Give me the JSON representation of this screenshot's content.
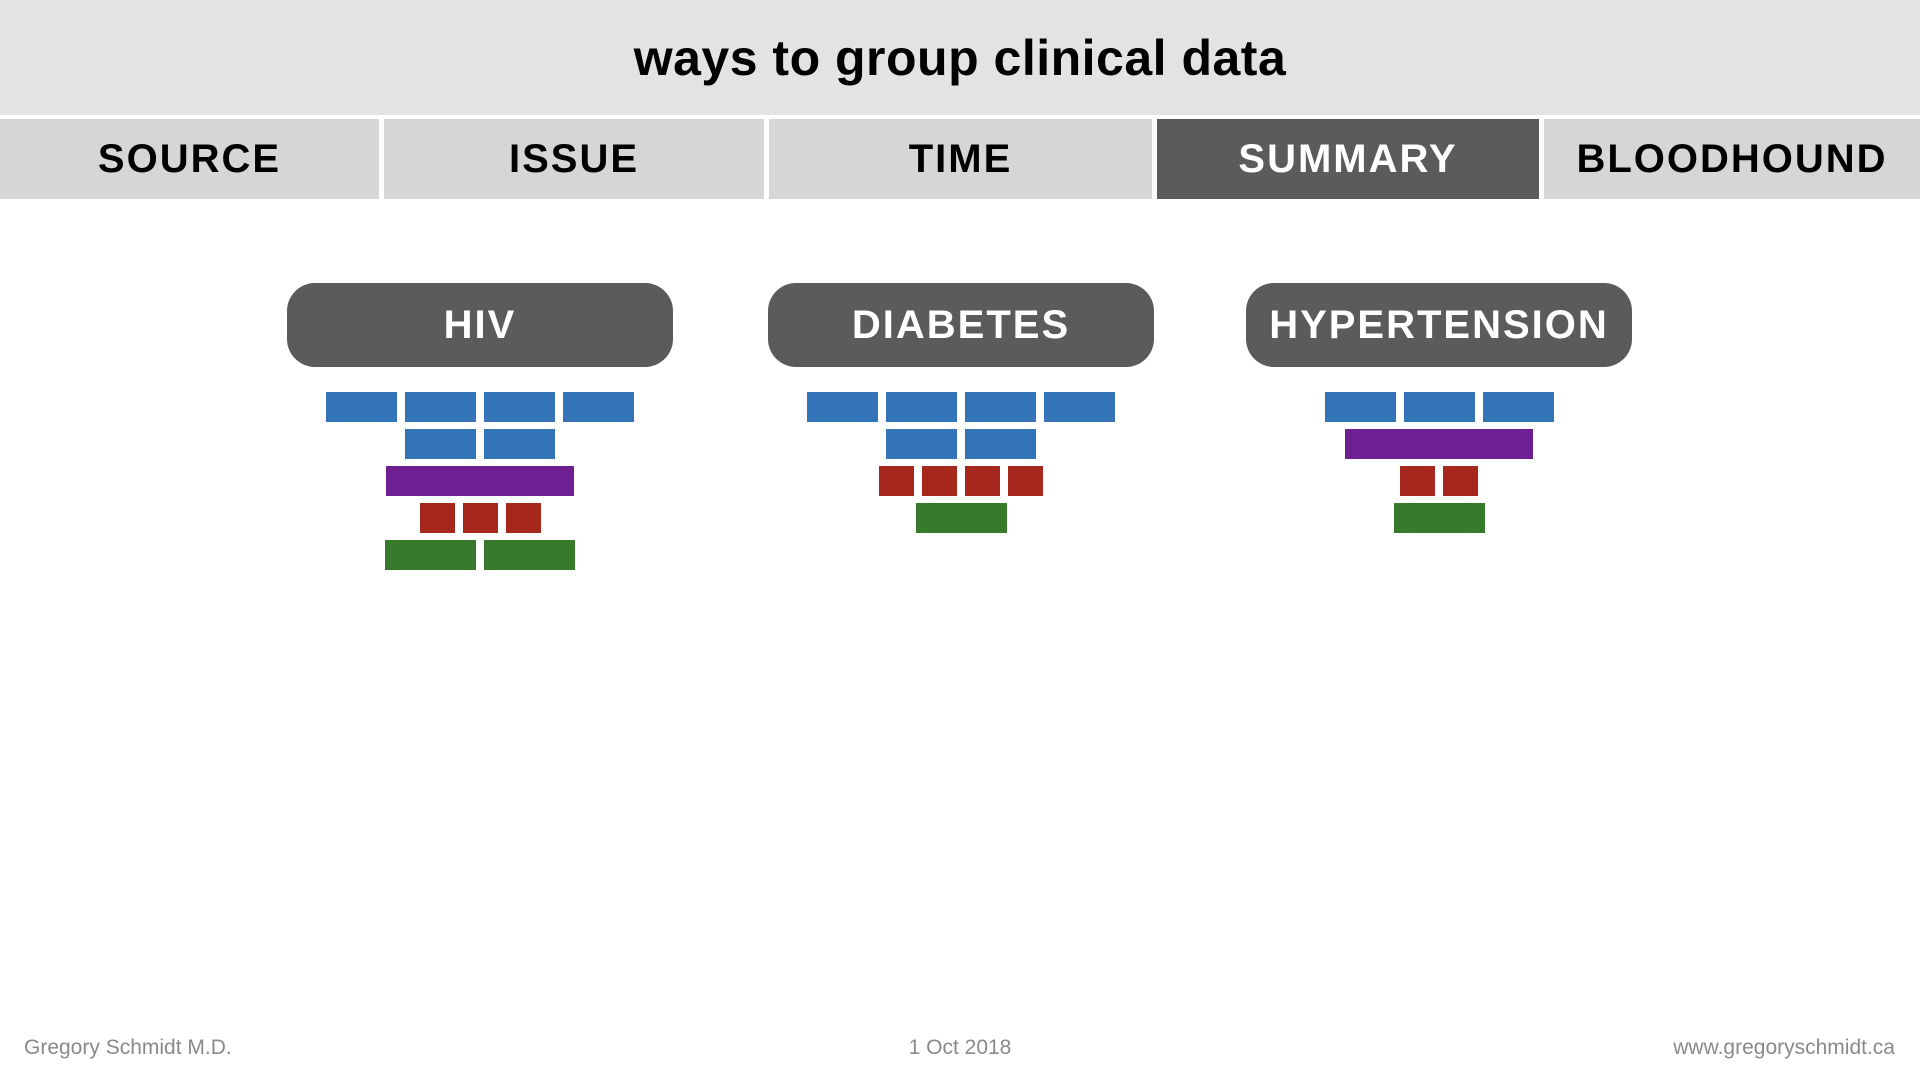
{
  "header": {
    "title": "ways to group clinical data"
  },
  "tabs": [
    {
      "label": "SOURCE",
      "active": false
    },
    {
      "label": "ISSUE",
      "active": false
    },
    {
      "label": "TIME",
      "active": false
    },
    {
      "label": "SUMMARY",
      "active": true
    },
    {
      "label": "BLOODHOUND",
      "active": false
    }
  ],
  "colors": {
    "blue": "#3474b8",
    "purple": "#6e1f92",
    "red": "#a6281c",
    "green": "#377a2c",
    "pill": "#5b5b5b",
    "tab_active": "#5b5b5b",
    "tab_inactive": "#d6d6d6"
  },
  "groups": [
    {
      "label": "HIV",
      "rows": [
        {
          "color": "blue",
          "count": 4,
          "size": "wide"
        },
        {
          "color": "blue",
          "count": 2,
          "size": "wide"
        },
        {
          "color": "purple",
          "count": 1,
          "size": "full"
        },
        {
          "color": "red",
          "count": 3,
          "size": "small"
        },
        {
          "color": "green",
          "count": 2,
          "size": "medium"
        }
      ]
    },
    {
      "label": "DIABETES",
      "rows": [
        {
          "color": "blue",
          "count": 4,
          "size": "wide"
        },
        {
          "color": "blue",
          "count": 2,
          "size": "wide"
        },
        {
          "color": "red",
          "count": 4,
          "size": "small"
        },
        {
          "color": "green",
          "count": 1,
          "size": "medium"
        }
      ]
    },
    {
      "label": "HYPERTENSION",
      "rows": [
        {
          "color": "blue",
          "count": 3,
          "size": "wide"
        },
        {
          "color": "purple",
          "count": 1,
          "size": "full"
        },
        {
          "color": "red",
          "count": 2,
          "size": "small"
        },
        {
          "color": "green",
          "count": 1,
          "size": "medium"
        }
      ]
    }
  ],
  "footer": {
    "author": "Gregory Schmidt M.D.",
    "date": "1 Oct 2018",
    "website": "www.gregoryschmidt.ca"
  }
}
